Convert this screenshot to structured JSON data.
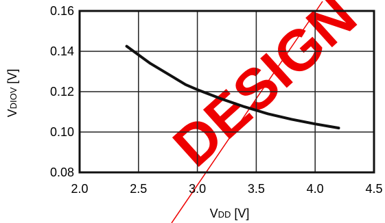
{
  "chart_data": {
    "type": "line",
    "title": "",
    "xlabel": {
      "main": "V",
      "sub": "DD",
      "unit": " [V]"
    },
    "ylabel": {
      "main": "V",
      "sub": "DIOV",
      "unit": " [V]"
    },
    "xlim": [
      2.0,
      4.5
    ],
    "ylim": [
      0.08,
      0.16
    ],
    "xticks": [
      "2.0",
      "2.5",
      "3.0",
      "3.5",
      "4.0",
      "4.5"
    ],
    "yticks": [
      "0.08",
      "0.10",
      "0.12",
      "0.14",
      "0.16"
    ],
    "grid": true,
    "legend": "none",
    "series": [
      {
        "x": [
          2.4,
          2.6,
          2.8,
          2.9,
          3.0,
          3.2,
          3.4,
          3.6,
          3.8,
          4.0,
          4.2
        ],
        "y": [
          0.1425,
          0.134,
          0.127,
          0.1235,
          0.121,
          0.1165,
          0.1125,
          0.109,
          0.1063,
          0.104,
          0.102
        ],
        "color": "#111111"
      }
    ]
  },
  "watermark": {
    "text": "DESIGN",
    "color": "#ee0000"
  }
}
